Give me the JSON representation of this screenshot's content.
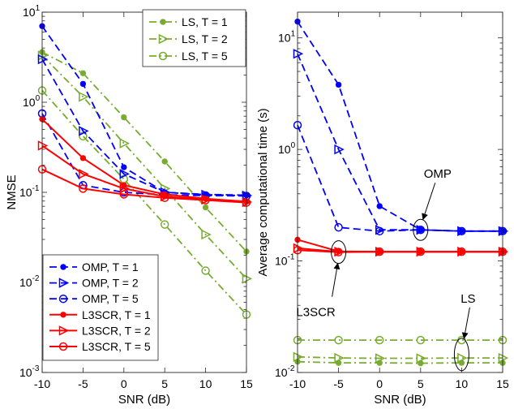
{
  "chart_data": [
    {
      "type": "line",
      "yscale": "log",
      "xlabel": "SNR (dB)",
      "ylabel": "NMSE",
      "x": [
        -10,
        -5,
        0,
        5,
        10,
        15
      ],
      "xticks": [
        "-10",
        "-5",
        "0",
        "5",
        "10",
        "15"
      ],
      "xlim": [
        -10,
        15
      ],
      "ylim": [
        0.001,
        10
      ],
      "yticks": [
        {
          "base": "10",
          "exp": "-3"
        },
        {
          "base": "10",
          "exp": "-2"
        },
        {
          "base": "10",
          "exp": "-1"
        },
        {
          "base": "10",
          "exp": "0"
        },
        {
          "base": "10",
          "exp": "1"
        }
      ],
      "legend_top": {
        "position": "top-right",
        "entries": [
          0,
          1,
          2
        ]
      },
      "legend_bottom": {
        "position": "bottom-left",
        "entries": [
          3,
          4,
          5,
          6,
          7,
          8
        ]
      },
      "series": [
        {
          "name": "LS, T = 1",
          "color": "#77ac30",
          "dash": "dashdot",
          "marker": "asterisk",
          "values": [
            3.6,
            2.1,
            0.68,
            0.22,
            0.068,
            0.022
          ]
        },
        {
          "name": "LS, T = 2",
          "color": "#77ac30",
          "dash": "dashdot",
          "marker": "triangle-right",
          "values": [
            3.3,
            1.15,
            0.35,
            0.11,
            0.034,
            0.011
          ]
        },
        {
          "name": "LS, T = 5",
          "color": "#77ac30",
          "dash": "dashdot",
          "marker": "circle",
          "values": [
            1.35,
            0.42,
            0.14,
            0.044,
            0.0135,
            0.0044
          ]
        },
        {
          "name": "OMP, T = 1",
          "color": "#0000ff",
          "dash": "dashed",
          "marker": "asterisk",
          "values": [
            7.0,
            1.6,
            0.19,
            0.1,
            0.095,
            0.093
          ]
        },
        {
          "name": "OMP, T = 2",
          "color": "#0000ff",
          "dash": "dashed",
          "marker": "triangle-right",
          "values": [
            3.0,
            0.48,
            0.16,
            0.1,
            0.094,
            0.092
          ]
        },
        {
          "name": "OMP, T = 5",
          "color": "#0000ff",
          "dash": "dashed",
          "marker": "circle",
          "values": [
            0.75,
            0.12,
            0.1,
            0.094,
            0.092,
            0.091
          ]
        },
        {
          "name": "L3SCR, T = 1",
          "color": "#ff0000",
          "dash": "solid",
          "marker": "asterisk",
          "values": [
            0.65,
            0.24,
            0.12,
            0.095,
            0.085,
            0.079
          ]
        },
        {
          "name": "L3SCR, T = 2",
          "color": "#ff0000",
          "dash": "solid",
          "marker": "triangle-right",
          "values": [
            0.33,
            0.16,
            0.11,
            0.09,
            0.083,
            0.078
          ]
        },
        {
          "name": "L3SCR, T = 5",
          "color": "#ff0000",
          "dash": "solid",
          "marker": "circle",
          "values": [
            0.18,
            0.11,
            0.095,
            0.087,
            0.082,
            0.077
          ]
        }
      ]
    },
    {
      "type": "line",
      "yscale": "log",
      "xlabel": "SNR (dB)",
      "ylabel": "Average computational time (s)",
      "x": [
        -10,
        -5,
        0,
        5,
        10,
        15
      ],
      "xticks": [
        "-10",
        "-5",
        "0",
        "5",
        "10",
        "15"
      ],
      "xlim": [
        -10,
        15
      ],
      "ylim": [
        0.01,
        17
      ],
      "yticks": [
        {
          "base": "10",
          "exp": "-2"
        },
        {
          "base": "10",
          "exp": "-1"
        },
        {
          "base": "10",
          "exp": "0"
        },
        {
          "base": "10",
          "exp": "1"
        }
      ],
      "annotations": [
        {
          "text": "OMP",
          "target_x": 5,
          "target_y": 0.19
        },
        {
          "text": "L3SCR",
          "target_x": -5,
          "target_y": 0.12
        },
        {
          "text": "LS",
          "target_x": 10,
          "target_y": 0.0145
        }
      ],
      "series": [
        {
          "name": "LS, T = 1",
          "color": "#77ac30",
          "dash": "dashdot",
          "marker": "asterisk",
          "values": [
            0.0125,
            0.0122,
            0.0122,
            0.0121,
            0.0122,
            0.0122
          ]
        },
        {
          "name": "LS, T = 2",
          "color": "#77ac30",
          "dash": "dashdot",
          "marker": "triangle-right",
          "values": [
            0.0138,
            0.0135,
            0.0134,
            0.0134,
            0.0135,
            0.0135
          ]
        },
        {
          "name": "LS, T = 5",
          "color": "#77ac30",
          "dash": "dashdot",
          "marker": "circle",
          "values": [
            0.0195,
            0.0195,
            0.0195,
            0.0195,
            0.0195,
            0.0195
          ]
        },
        {
          "name": "OMP, T = 1",
          "color": "#0000ff",
          "dash": "dashed",
          "marker": "asterisk",
          "values": [
            14,
            3.8,
            0.31,
            0.19,
            0.185,
            0.185
          ]
        },
        {
          "name": "OMP, T = 2",
          "color": "#0000ff",
          "dash": "dashed",
          "marker": "triangle-right",
          "values": [
            7.2,
            1.0,
            0.19,
            0.19,
            0.185,
            0.185
          ]
        },
        {
          "name": "OMP, T = 5",
          "color": "#0000ff",
          "dash": "dashed",
          "marker": "circle",
          "values": [
            1.65,
            0.2,
            0.185,
            0.19,
            0.185,
            0.185
          ]
        },
        {
          "name": "L3SCR, T = 1",
          "color": "#ff0000",
          "dash": "solid",
          "marker": "asterisk",
          "values": [
            0.155,
            0.122,
            0.121,
            0.121,
            0.121,
            0.121
          ]
        },
        {
          "name": "L3SCR, T = 2",
          "color": "#ff0000",
          "dash": "solid",
          "marker": "triangle-right",
          "values": [
            0.13,
            0.121,
            0.121,
            0.121,
            0.121,
            0.121
          ]
        },
        {
          "name": "L3SCR, T = 5",
          "color": "#ff0000",
          "dash": "solid",
          "marker": "circle",
          "values": [
            0.125,
            0.12,
            0.121,
            0.121,
            0.121,
            0.121
          ]
        }
      ]
    }
  ]
}
